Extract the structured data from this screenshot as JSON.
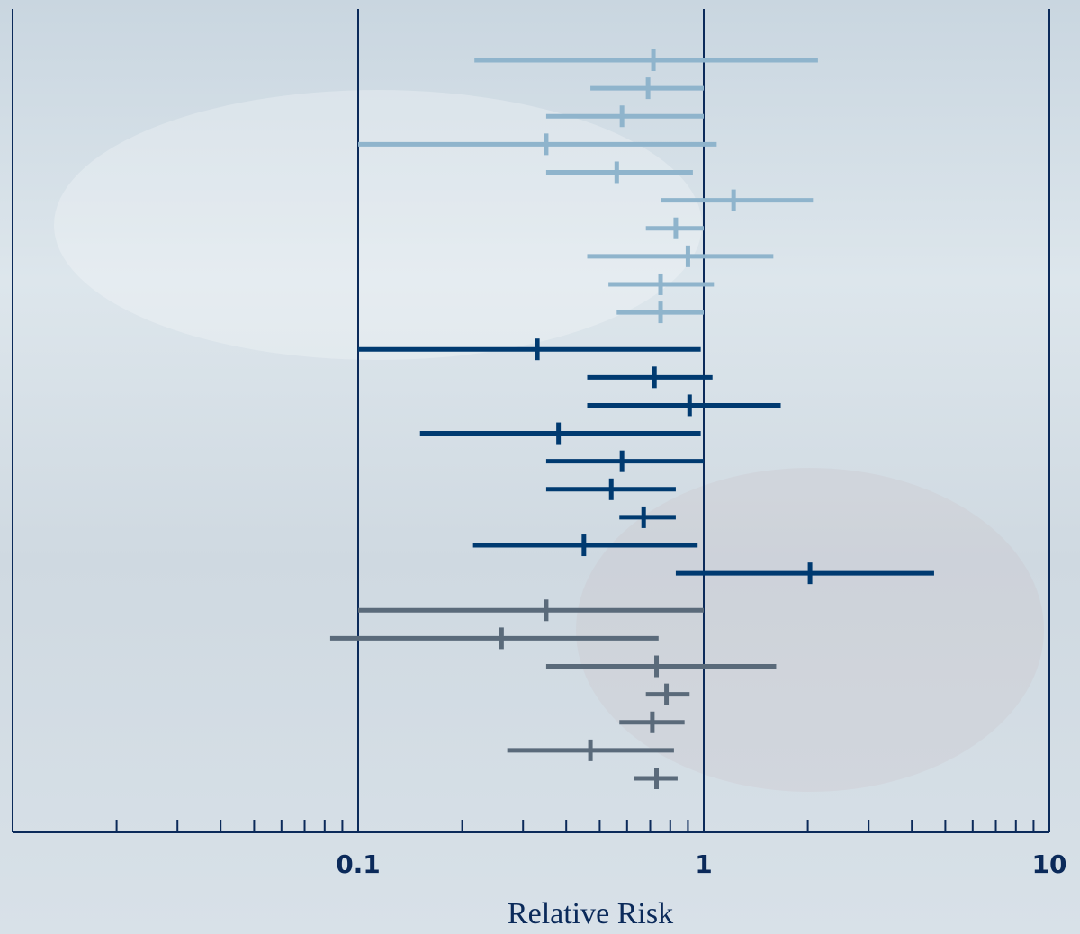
{
  "chart_data": {
    "type": "forest",
    "xlabel": "Relative Risk",
    "xscale": "log",
    "xlim": [
      0.01,
      10
    ],
    "xticks": [
      0.1,
      1,
      10
    ],
    "xminorticks": [
      0.02,
      0.03,
      0.04,
      0.05,
      0.06,
      0.07,
      0.08,
      0.09,
      0.2,
      0.3,
      0.4,
      0.5,
      0.6,
      0.7,
      0.8,
      0.9,
      2,
      3,
      4,
      5,
      6,
      7,
      8,
      9
    ],
    "grid": true,
    "series": [
      {
        "color": "#8fb4cc",
        "values": [
          0.715,
          0.69,
          0.58,
          0.35,
          0.56,
          1.22,
          0.83,
          0.9,
          0.75,
          0.75
        ],
        "low": [
          0.217,
          0.47,
          0.35,
          0.1,
          0.35,
          0.75,
          0.68,
          0.46,
          0.53,
          0.56
        ],
        "high": [
          2.14,
          1,
          1,
          1.09,
          0.93,
          2.07,
          1,
          1.59,
          1.07,
          1
        ]
      },
      {
        "color": "#003a70",
        "values": [
          0.33,
          0.72,
          0.91,
          0.38,
          0.58,
          0.54,
          0.67,
          0.45,
          2.03
        ],
        "low": [
          0.1,
          0.46,
          0.46,
          0.151,
          0.35,
          0.35,
          0.57,
          0.215,
          0.83
        ],
        "high": [
          0.98,
          1.06,
          1.67,
          0.98,
          1,
          0.83,
          0.83,
          0.96,
          4.64
        ]
      },
      {
        "color": "#5a6a7a",
        "values": [
          0.35,
          0.26,
          0.73,
          0.78,
          0.71,
          0.47,
          0.73
        ],
        "low": [
          0.1,
          0.083,
          0.35,
          0.68,
          0.57,
          0.27,
          0.63
        ],
        "high": [
          1,
          0.74,
          1.62,
          0.91,
          0.88,
          0.82,
          0.84
        ]
      }
    ]
  }
}
